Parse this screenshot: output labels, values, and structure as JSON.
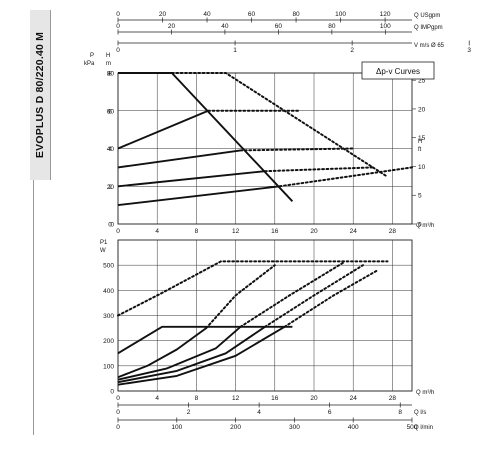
{
  "product_label": "EVOPLUS D 80/220.40 M",
  "legend_label": "Δp-v Curves",
  "top_axes": [
    {
      "label": "Q USgpm",
      "ticks": [
        "0",
        "20",
        "40",
        "60",
        "80",
        "100",
        "120"
      ]
    },
    {
      "label": "Q IMPgpm",
      "ticks": [
        "0",
        "20",
        "40",
        "60",
        "80",
        "100"
      ]
    },
    {
      "label": "V m/s Ø 65",
      "ticks": [
        "0",
        "1",
        "2",
        "3",
        "4"
      ]
    }
  ],
  "bottom_axes": [
    {
      "label": "Q l/s",
      "ticks": [
        "0",
        "2",
        "4",
        "6",
        "8"
      ]
    },
    {
      "label": "Q l/min",
      "ticks": [
        "0",
        "100",
        "200",
        "300",
        "400",
        "500"
      ]
    }
  ],
  "chart_data": [
    {
      "type": "line",
      "x_label": "Q m³/h",
      "y_left_label": "P kPa",
      "y_right_label": "H m",
      "y_right2_label": "H ft",
      "xlim": [
        0,
        30
      ],
      "ylim": [
        0,
        80
      ],
      "x_ticks": [
        0,
        4,
        8,
        12,
        16,
        20,
        24,
        28
      ],
      "y_ticks": [
        0,
        20,
        40,
        60,
        80
      ],
      "y_right_ticks": [
        0,
        2,
        4,
        6,
        8
      ],
      "y_right2_ticks": [
        0,
        5,
        10,
        15,
        20,
        25
      ],
      "grid": true,
      "legend": "top-right",
      "series": [
        {
          "style": "solid",
          "x": [
            0,
            5.5,
            17.8
          ],
          "y": [
            80,
            80,
            12
          ]
        },
        {
          "style": "dotted",
          "x": [
            5.5,
            11,
            27.5
          ],
          "y": [
            80,
            80,
            25
          ]
        },
        {
          "style": "solid",
          "x": [
            0,
            9.2
          ],
          "y": [
            40,
            60
          ]
        },
        {
          "style": "dotted",
          "x": [
            9.2,
            18.5
          ],
          "y": [
            60,
            60
          ]
        },
        {
          "style": "solid",
          "x": [
            0,
            12.5
          ],
          "y": [
            30,
            39
          ]
        },
        {
          "style": "dotted",
          "x": [
            12.5,
            24
          ],
          "y": [
            39,
            40
          ]
        },
        {
          "style": "solid",
          "x": [
            0,
            15
          ],
          "y": [
            20,
            28
          ]
        },
        {
          "style": "dotted",
          "x": [
            15,
            26
          ],
          "y": [
            28,
            30
          ]
        },
        {
          "style": "solid",
          "x": [
            0,
            16.5
          ],
          "y": [
            10,
            20
          ]
        },
        {
          "style": "dotted",
          "x": [
            16.5,
            30
          ],
          "y": [
            20,
            30
          ]
        }
      ]
    },
    {
      "type": "line",
      "x_label": "Q m³/h",
      "y_label": "P1 W",
      "xlim": [
        0,
        30
      ],
      "ylim": [
        0,
        600
      ],
      "x_ticks": [
        0,
        4,
        8,
        12,
        16,
        20,
        24,
        28
      ],
      "y_ticks": [
        0,
        100,
        200,
        300,
        400,
        500
      ],
      "grid": true,
      "series": [
        {
          "style": "solid",
          "x": [
            0,
            4.5,
            17.8
          ],
          "y": [
            150,
            255,
            255
          ]
        },
        {
          "style": "dotted",
          "x": [
            0,
            4.5,
            10.5,
            27.5
          ],
          "y": [
            300,
            390,
            515,
            515
          ]
        },
        {
          "style": "solid",
          "x": [
            0,
            3,
            6,
            9
          ],
          "y": [
            55,
            100,
            165,
            250
          ]
        },
        {
          "style": "dotted",
          "x": [
            9,
            12,
            16
          ],
          "y": [
            250,
            380,
            500
          ]
        },
        {
          "style": "solid",
          "x": [
            0,
            5,
            10,
            12.5
          ],
          "y": [
            45,
            90,
            170,
            255
          ]
        },
        {
          "style": "dotted",
          "x": [
            12.5,
            17.5,
            23
          ],
          "y": [
            255,
            380,
            510
          ]
        },
        {
          "style": "solid",
          "x": [
            0,
            6,
            11,
            15
          ],
          "y": [
            35,
            80,
            150,
            255
          ]
        },
        {
          "style": "dotted",
          "x": [
            15,
            20,
            25
          ],
          "y": [
            255,
            380,
            500
          ]
        },
        {
          "style": "solid",
          "x": [
            0,
            6,
            12,
            17
          ],
          "y": [
            25,
            60,
            140,
            255
          ]
        },
        {
          "style": "dotted",
          "x": [
            17,
            22,
            26.5
          ],
          "y": [
            255,
            380,
            480
          ]
        }
      ]
    }
  ]
}
